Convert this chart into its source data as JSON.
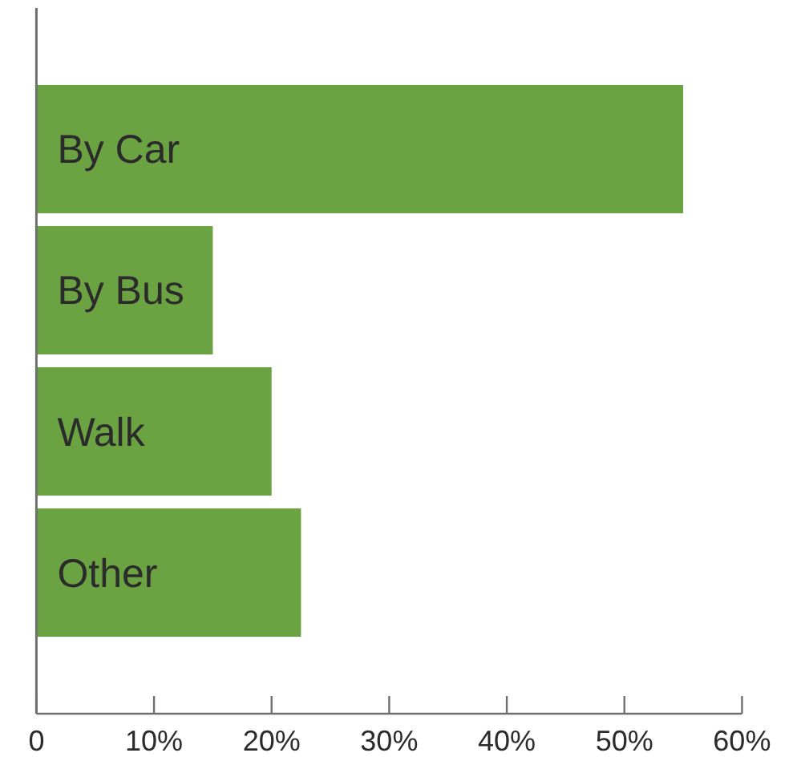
{
  "chart_data": {
    "type": "bar",
    "orientation": "horizontal",
    "categories": [
      "By Car",
      "By Bus",
      "Walk",
      "Other"
    ],
    "values": [
      55,
      15,
      20,
      22.5
    ],
    "color": "#6ba342",
    "xlim": [
      0,
      60
    ],
    "xticks": [
      0,
      {
        "value": 10,
        "label": "10%"
      },
      {
        "value": 20,
        "label": "20%"
      },
      {
        "value": 30,
        "label": "30%"
      },
      {
        "value": 40,
        "label": "40%"
      },
      {
        "value": 50,
        "label": "50%"
      },
      {
        "value": 60,
        "label": "60%"
      }
    ],
    "grid": false
  }
}
